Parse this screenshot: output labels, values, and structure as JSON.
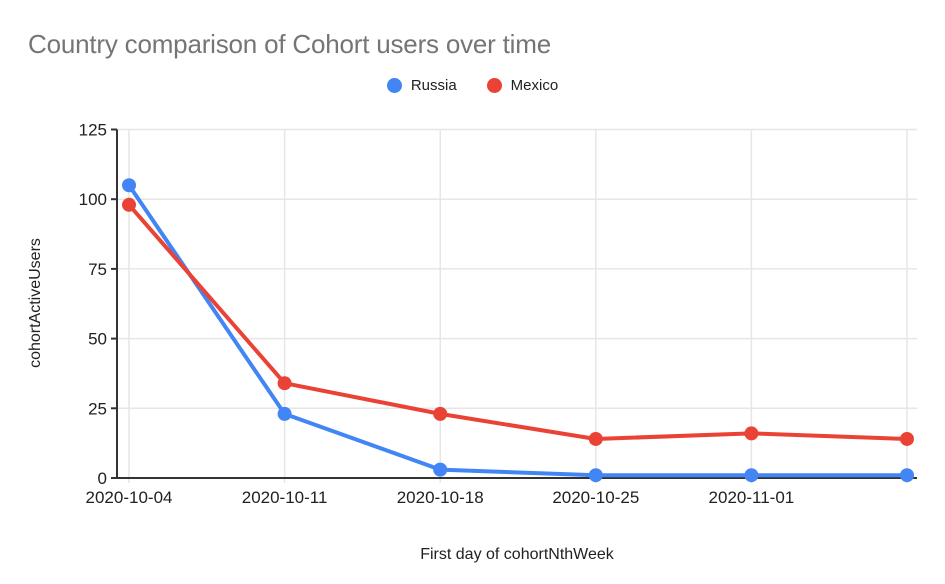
{
  "chart_data": {
    "type": "line",
    "title": "Country comparison of Cohort users over time",
    "xlabel": "First day of cohortNthWeek",
    "ylabel": "cohortActiveUsers",
    "categories": [
      "2020-10-04",
      "2020-10-11",
      "2020-10-18",
      "2020-10-25",
      "2020-11-01",
      ""
    ],
    "series": [
      {
        "name": "Russia",
        "color": "#4285F4",
        "values": [
          105,
          23,
          3,
          1,
          1,
          1
        ]
      },
      {
        "name": "Mexico",
        "color": "#EA4335",
        "values": [
          98,
          34,
          23,
          14,
          16,
          14
        ]
      }
    ],
    "y_ticks": [
      0,
      25,
      50,
      75,
      100,
      125
    ],
    "ylim": [
      0,
      125
    ],
    "grid": true,
    "legend_position": "top-center",
    "style": {
      "title_color": "#757575",
      "axis_text_color": "#212121",
      "gridline_color": "#e6e6e6",
      "axis_line_color": "#333333",
      "background": "#ffffff"
    }
  }
}
